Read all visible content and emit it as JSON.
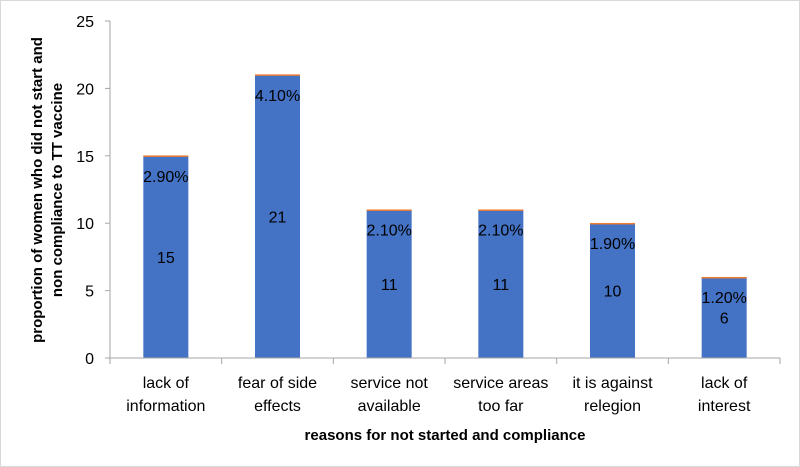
{
  "chart_data": {
    "type": "bar",
    "categories": [
      [
        "lack of",
        "information"
      ],
      [
        "fear of side",
        "effects"
      ],
      [
        "service not",
        "available"
      ],
      [
        "service areas",
        "too far"
      ],
      [
        "it is against",
        "relegion"
      ],
      [
        "lack of",
        "interest"
      ]
    ],
    "series": [
      {
        "values": [
          15,
          21,
          11,
          11,
          10,
          6
        ],
        "labels": [
          "15",
          "21",
          "11",
          "11",
          "10",
          "6"
        ]
      },
      {
        "values": [
          0.029,
          0.041,
          0.021,
          0.021,
          0.019,
          0.012
        ],
        "labels": [
          "2.90%",
          "4.10%",
          "2.10%",
          "2.10%",
          "1.90%",
          "1.20%"
        ]
      }
    ],
    "stacked": true,
    "xlabel": "reasons for not started and compliance",
    "ylabel": [
      "proportion of women who did not start and",
      "non compliance to TT vaccine"
    ],
    "ylim": [
      0,
      25
    ],
    "yticks": [
      0,
      5,
      10,
      15,
      20,
      25
    ],
    "grid": false,
    "legend": "none",
    "colors": {
      "bar": "#4472c4",
      "bar_top": "#ed7d31",
      "axis": "#a6a6a6"
    }
  }
}
